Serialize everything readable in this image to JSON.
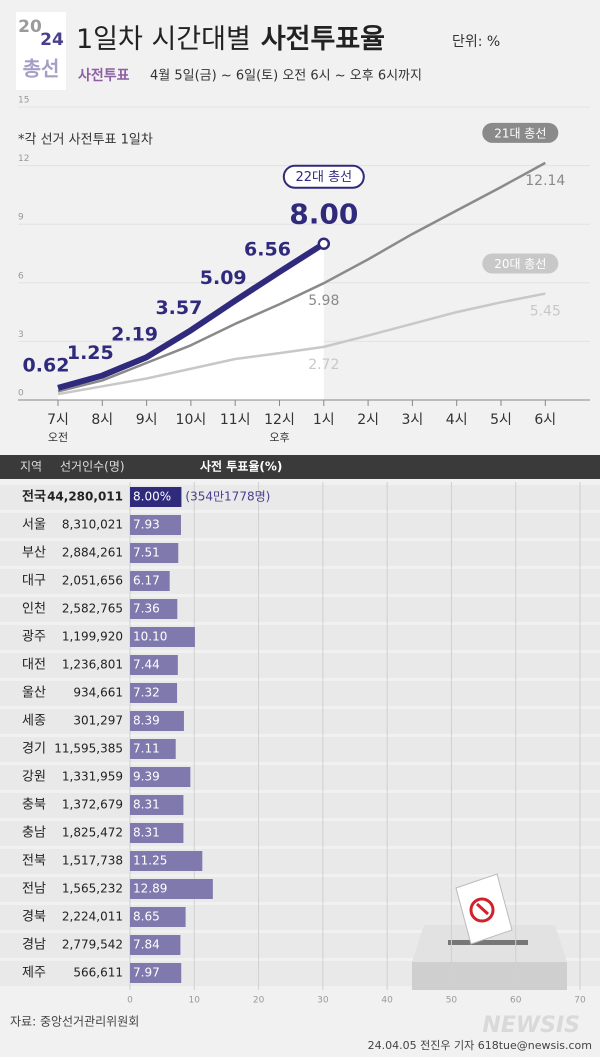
{
  "header": {
    "badge_year_top": "20",
    "badge_year_bottom": "24",
    "badge_label": "총선",
    "title": "1일차 시간대별",
    "title_bold": "사전투표율",
    "unit": "단위: %",
    "subtitle_tag": "사전투표",
    "subtitle": "4월 5일(금) ~ 6일(토) 오전 6시 ~ 오후 6시까지"
  },
  "chart_data": [
    {
      "type": "line",
      "note": "*각 선거 사전투표 1일차",
      "categories": [
        "7시",
        "8시",
        "9시",
        "10시",
        "11시",
        "12시",
        "1시",
        "2시",
        "3시",
        "4시",
        "5시",
        "6시"
      ],
      "period_labels": [
        "오전",
        null,
        null,
        null,
        null,
        "오후",
        null,
        null,
        null,
        null,
        null,
        null
      ],
      "ylim": [
        0,
        15
      ],
      "yticks": [
        0,
        3,
        6,
        9,
        12,
        15
      ],
      "series": [
        {
          "name": "20대 총선",
          "color": "#c8c8c8",
          "values": [
            0.3,
            0.7,
            1.1,
            1.6,
            2.1,
            2.4,
            2.72,
            3.3,
            3.9,
            4.5,
            5.0,
            5.45
          ],
          "value_labels": [
            null,
            null,
            null,
            null,
            null,
            null,
            "2.72",
            null,
            null,
            null,
            null,
            "5.45"
          ]
        },
        {
          "name": "21대 총선",
          "color": "#8a8a8a",
          "values": [
            0.44,
            1.0,
            1.9,
            2.8,
            3.9,
            4.9,
            5.98,
            7.2,
            8.5,
            9.7,
            10.9,
            12.14
          ],
          "value_labels": [
            null,
            null,
            null,
            null,
            null,
            null,
            "5.98",
            null,
            null,
            null,
            null,
            "12.14"
          ]
        },
        {
          "name": "22대 총선",
          "color": "#2f2a7c",
          "values": [
            0.62,
            1.25,
            2.19,
            3.57,
            5.09,
            6.56,
            8,
            null,
            null,
            null,
            null,
            null
          ],
          "value_labels": [
            "0.62",
            "1.25",
            "2.19",
            "3.57",
            "5.09",
            "6.56",
            "8.00",
            null,
            null,
            null,
            null,
            null
          ]
        }
      ]
    },
    {
      "type": "bar",
      "orientation": "horizontal",
      "columns": [
        "지역",
        "선거인수(명)",
        "사전 투표율(%)"
      ],
      "categories": [
        "전국",
        "서울",
        "부산",
        "대구",
        "인천",
        "광주",
        "대전",
        "울산",
        "세종",
        "경기",
        "강원",
        "충북",
        "충남",
        "전북",
        "전남",
        "경북",
        "경남",
        "제주"
      ],
      "electors": [
        "44,280,011",
        "8,310,021",
        "2,884,261",
        "2,051,656",
        "2,582,765",
        "1,199,920",
        "1,236,801",
        "934,661",
        "301,297",
        "11,595,385",
        "1,331,959",
        "1,372,679",
        "1,825,472",
        "1,517,738",
        "1,565,232",
        "2,224,011",
        "2,779,542",
        "566,611"
      ],
      "values": [
        8,
        7.93,
        7.51,
        6.17,
        7.36,
        10.1,
        7.44,
        7.32,
        8.39,
        7.11,
        9.39,
        8.31,
        8.31,
        11.25,
        12.89,
        8.65,
        7.84,
        7.97
      ],
      "value_labels": [
        "8.00%",
        "7.93",
        "7.51",
        "6.17",
        "7.36",
        "10.10",
        "7.44",
        "7.32",
        "8.39",
        "7.11",
        "9.39",
        "8.31",
        "8.31",
        "11.25",
        "12.89",
        "8.65",
        "7.84",
        "7.97"
      ],
      "total_note": "(354만1778명)",
      "color": "#7f79ad",
      "total_color": "#2f2a7c",
      "xlim": [
        0,
        70
      ],
      "xticks": [
        0,
        10,
        20,
        30,
        40,
        50,
        60,
        70
      ]
    }
  ],
  "footer": {
    "source": "자료: 중앙선거관리위원회",
    "credit": "24.04.05 전진우 기자 618tue@newsis.com",
    "logo": "NEWSIS"
  }
}
